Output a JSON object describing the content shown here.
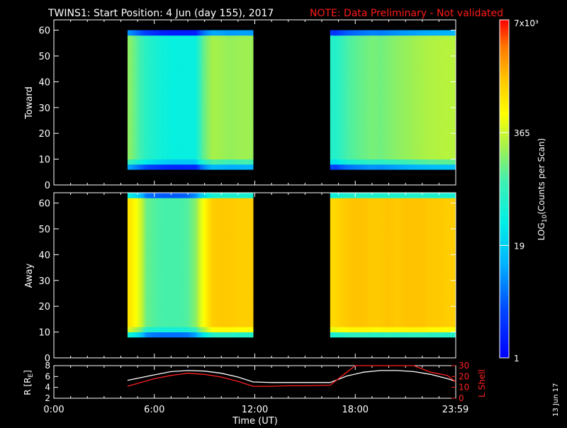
{
  "header": {
    "title": "TWINS1: Start Position:  4 Jun (day 155), 2017",
    "note": "NOTE: Data Preliminary - Not validated"
  },
  "side_date": "13 Jun 17",
  "colors": {
    "background": "#000000",
    "axis": "#ffffff",
    "note": "#ff1a1a",
    "lshell": "#ff2020",
    "r_line": "#ffffff"
  },
  "chart_data": [
    {
      "type": "heatmap",
      "name": "toward-panel",
      "ylabel": "Toward",
      "ylim": [
        0,
        64
      ],
      "yticks": [
        0,
        10,
        20,
        30,
        40,
        50,
        60
      ],
      "xlim": [
        0,
        24
      ],
      "data_intervals": [
        [
          4.4,
          11.9
        ],
        [
          16.5,
          24
        ]
      ],
      "y_low_edge": 8,
      "y_high_edge": 57,
      "level_samples_hours": [
        4.5,
        5.0,
        5.5,
        6.0,
        6.5,
        7.0,
        7.5,
        8.0,
        8.5,
        9.0,
        9.5,
        10.0,
        10.5,
        11.0,
        11.5,
        16.8,
        17.5,
        18.0,
        18.5,
        19.0,
        19.5,
        20.0,
        20.5,
        21.0,
        21.5,
        22.0,
        22.5,
        23.0,
        23.5
      ],
      "level_samples_counts": [
        200,
        120,
        70,
        55,
        45,
        40,
        40,
        40,
        40,
        150,
        260,
        240,
        220,
        230,
        240,
        60,
        110,
        130,
        150,
        170,
        160,
        180,
        200,
        220,
        240,
        260,
        280,
        290,
        300
      ]
    },
    {
      "type": "heatmap",
      "name": "away-panel",
      "ylabel": "Away",
      "ylim": [
        0,
        64
      ],
      "yticks": [
        0,
        10,
        20,
        30,
        40,
        50,
        60
      ],
      "xlim": [
        0,
        24
      ],
      "data_intervals": [
        [
          4.4,
          11.9
        ],
        [
          16.5,
          24
        ]
      ],
      "y_low_edge": 10,
      "y_high_edge": 62,
      "level_samples_hours": [
        4.5,
        5.0,
        5.5,
        6.0,
        6.5,
        7.0,
        7.5,
        8.0,
        8.5,
        9.0,
        9.5,
        10.0,
        10.5,
        11.0,
        11.5,
        16.8,
        17.5,
        18.0,
        18.5,
        19.0,
        19.5,
        20.0,
        20.5,
        21.0,
        21.5,
        22.0,
        22.5,
        23.0,
        23.5
      ],
      "level_samples_counts": [
        900,
        500,
        150,
        120,
        110,
        110,
        110,
        120,
        200,
        600,
        1300,
        1400,
        1400,
        1300,
        1300,
        1100,
        1400,
        1500,
        1500,
        1400,
        1400,
        1500,
        1400,
        1500,
        1500,
        1500,
        1400,
        1400,
        1300
      ]
    },
    {
      "type": "line",
      "name": "orbit-panel",
      "ylabel": "R [R",
      "ylabel_sub": "E",
      "ylabel_close": "]",
      "ylabel_right": "L Shell",
      "ylim": [
        2,
        8
      ],
      "yticks": [
        2,
        4,
        6,
        8
      ],
      "ylim_right": [
        0,
        30
      ],
      "yticks_right": [
        0,
        10,
        20,
        30
      ],
      "xlabel": "Time (UT)",
      "xticks": [
        "0:00",
        "6:00",
        "12:00",
        "18:00",
        "23:59"
      ],
      "xtick_hours": [
        0,
        6,
        12,
        18,
        23.98
      ],
      "series": [
        {
          "name": "R",
          "x": [
            4.4,
            6,
            7,
            8,
            9,
            10,
            11,
            11.9,
            13,
            14,
            15,
            16.5,
            17.5,
            18.5,
            19.5,
            20.5,
            21.5,
            22.5,
            23.5,
            24
          ],
          "y": [
            5.3,
            6.3,
            6.9,
            7.1,
            7.0,
            6.6,
            5.9,
            5.0,
            4.9,
            4.9,
            4.9,
            4.9,
            6.1,
            6.8,
            7.1,
            7.1,
            6.9,
            6.4,
            5.6,
            5.1
          ]
        },
        {
          "name": "L Shell",
          "x": [
            4.4,
            6,
            7,
            8,
            9,
            10,
            11,
            11.9,
            13,
            14,
            15,
            16.5,
            17.5,
            18,
            18.2,
            21.5,
            22.5,
            23.5,
            24
          ],
          "y": [
            11,
            18,
            21,
            23,
            22,
            19.5,
            15.5,
            11,
            11,
            11.5,
            11.5,
            12,
            24,
            30,
            30,
            30,
            24,
            21,
            15
          ]
        }
      ]
    },
    {
      "type": "heatmap",
      "name": "colorbar",
      "ylabel": "LOG",
      "ylabel_sub": "10",
      "ylabel_close": "(Counts per Scan)",
      "tick_labels": [
        "1",
        "19",
        "365",
        "7x10³"
      ],
      "tick_values": [
        1,
        19,
        365,
        7000
      ],
      "range": [
        1,
        7000
      ]
    }
  ]
}
